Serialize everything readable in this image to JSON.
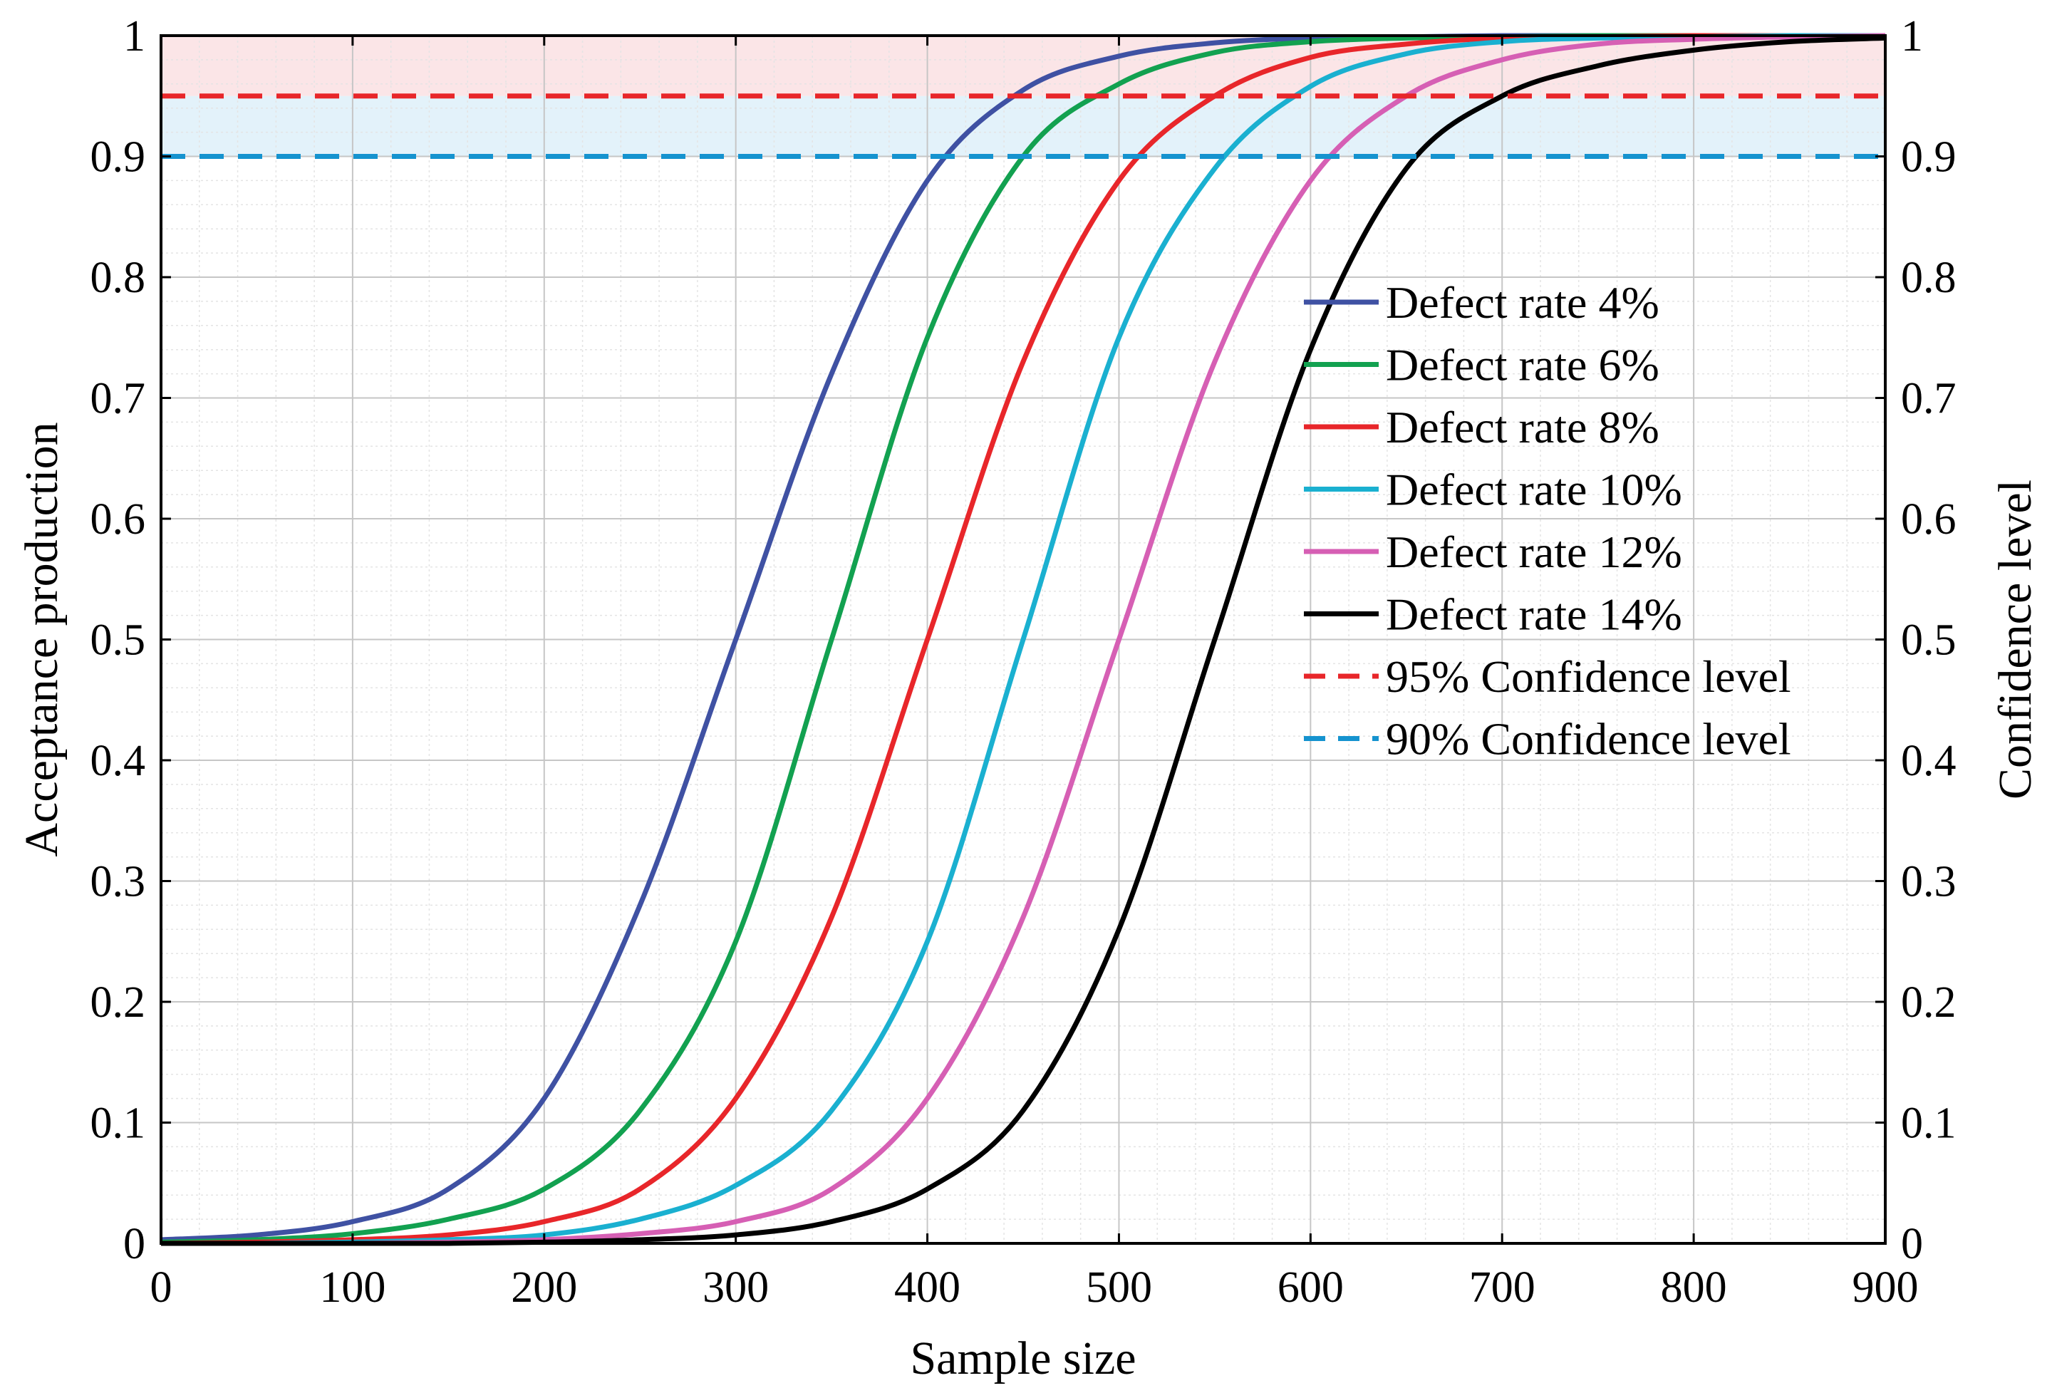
{
  "chart_data": {
    "type": "line",
    "xlabel": "Sample size",
    "ylabel": "Acceptance production",
    "y2label": "Confidence level",
    "xlim": [
      0,
      900
    ],
    "ylim": [
      0,
      1
    ],
    "x_ticks": [
      "0",
      "100",
      "200",
      "300",
      "400",
      "500",
      "600",
      "700",
      "800",
      "900"
    ],
    "y_ticks": [
      "0",
      "0.1",
      "0.2",
      "0.3",
      "0.4",
      "0.5",
      "0.6",
      "0.7",
      "0.8",
      "0.9",
      "1"
    ],
    "y2_ticks": [
      "0",
      "0.1",
      "0.2",
      "0.3",
      "0.4",
      "0.5",
      "0.6",
      "0.7",
      "0.8",
      "0.9",
      "1"
    ],
    "grid": true,
    "minor_grid": true,
    "legend_position": "center-right",
    "bands": [
      {
        "from": 0.95,
        "to": 1.0,
        "color": "#fbe5e7"
      },
      {
        "from": 0.9,
        "to": 0.95,
        "color": "#e3f2fa"
      }
    ],
    "x": [
      0,
      50,
      100,
      150,
      200,
      250,
      300,
      350,
      400,
      450,
      500,
      550,
      600,
      650,
      700,
      750,
      800,
      850,
      900
    ],
    "series": [
      {
        "name": "Defect rate 4%",
        "color": "#3f51a3",
        "style": "solid",
        "values": [
          0.003,
          0.007,
          0.018,
          0.045,
          0.12,
          0.28,
          0.5,
          0.72,
          0.88,
          0.955,
          0.983,
          0.994,
          0.998,
          0.999,
          1.0,
          1.0,
          1.0,
          1.0,
          1.0
        ]
      },
      {
        "name": "Defect rate 6%",
        "color": "#12a150",
        "style": "solid",
        "values": [
          0.001,
          0.003,
          0.008,
          0.02,
          0.045,
          0.11,
          0.25,
          0.5,
          0.75,
          0.9,
          0.96,
          0.986,
          0.995,
          0.998,
          0.999,
          1.0,
          1.0,
          1.0,
          1.0
        ]
      },
      {
        "name": "Defect rate 8%",
        "color": "#e8262a",
        "style": "solid",
        "values": [
          0.0,
          0.001,
          0.003,
          0.007,
          0.018,
          0.045,
          0.12,
          0.27,
          0.5,
          0.73,
          0.88,
          0.95,
          0.982,
          0.993,
          0.998,
          0.999,
          1.0,
          1.0,
          1.0
        ]
      },
      {
        "name": "Defect rate 10%",
        "color": "#1ab0d0",
        "style": "solid",
        "values": [
          0.0,
          0.0,
          0.001,
          0.003,
          0.007,
          0.02,
          0.048,
          0.11,
          0.25,
          0.5,
          0.75,
          0.89,
          0.958,
          0.985,
          0.995,
          0.998,
          0.999,
          1.0,
          1.0
        ]
      },
      {
        "name": "Defect rate 12%",
        "color": "#d65fb4",
        "style": "solid",
        "values": [
          0.0,
          0.0,
          0.0,
          0.001,
          0.003,
          0.008,
          0.018,
          0.045,
          0.12,
          0.27,
          0.5,
          0.73,
          0.88,
          0.95,
          0.98,
          0.993,
          0.997,
          0.999,
          1.0
        ]
      },
      {
        "name": "Defect rate 14%",
        "color": "#000000",
        "style": "solid",
        "values": [
          0.0,
          0.0,
          0.0,
          0.0,
          0.001,
          0.003,
          0.007,
          0.018,
          0.045,
          0.11,
          0.26,
          0.5,
          0.74,
          0.89,
          0.95,
          0.975,
          0.988,
          0.995,
          0.998
        ]
      },
      {
        "name": "95% Confidence level",
        "color": "#e8262a",
        "style": "dashed",
        "values": [
          0.95,
          0.95,
          0.95,
          0.95,
          0.95,
          0.95,
          0.95,
          0.95,
          0.95,
          0.95,
          0.95,
          0.95,
          0.95,
          0.95,
          0.95,
          0.95,
          0.95,
          0.95,
          0.95
        ]
      },
      {
        "name": "90% Confidence level",
        "color": "#1593cf",
        "style": "dashed",
        "values": [
          0.9,
          0.9,
          0.9,
          0.9,
          0.9,
          0.9,
          0.9,
          0.9,
          0.9,
          0.9,
          0.9,
          0.9,
          0.9,
          0.9,
          0.9,
          0.9,
          0.9,
          0.9,
          0.9
        ]
      }
    ]
  }
}
